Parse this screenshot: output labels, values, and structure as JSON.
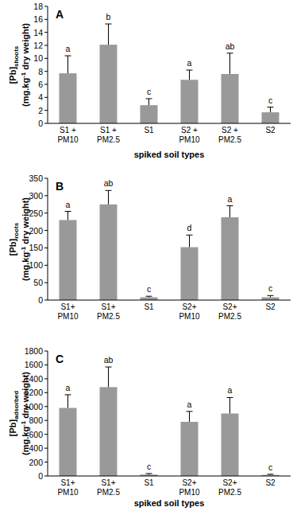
{
  "chart_data": [
    {
      "type": "bar",
      "annotation": "A",
      "y_label": [
        "[Pb]",
        "shoots"
      ],
      "y_unit": [
        "(mg.kg",
        "-1",
        " dry weight)"
      ],
      "x_label": "spiked soil types",
      "categories": [
        "S1 + PM10",
        "S1 + PM2.5",
        "S1",
        "S2 + PM10",
        "S2 + PM2.5",
        "S2"
      ],
      "values": [
        7.7,
        12.1,
        2.8,
        6.7,
        7.6,
        1.7
      ],
      "errors": [
        2.7,
        3.2,
        1.0,
        1.5,
        3.2,
        0.8
      ],
      "letters": [
        "a",
        "b",
        "c",
        "a",
        "ab",
        "c"
      ],
      "color": "#999999",
      "ylim": [
        0,
        18
      ],
      "yticks": [
        0,
        2,
        4,
        6,
        8,
        10,
        12,
        14,
        16,
        18
      ]
    },
    {
      "type": "bar",
      "annotation": "B",
      "y_label": [
        "[Pb]",
        "roots"
      ],
      "y_unit": [
        "(mg.kg",
        "-1",
        " dry weight)"
      ],
      "categories": [
        "S1+ PM10",
        "S1+ PM2.5",
        "S1",
        "S2+ PM10",
        "S2+ PM2.5",
        "S2"
      ],
      "values": [
        230,
        275,
        8,
        152,
        238,
        8
      ],
      "errors": [
        25,
        40,
        3,
        35,
        33,
        5
      ],
      "letters": [
        "a",
        "ab",
        "c",
        "d",
        "a",
        "c"
      ],
      "color": "#999999",
      "ylim": [
        0,
        350
      ],
      "yticks": [
        0,
        50,
        100,
        150,
        200,
        250,
        300,
        350
      ]
    },
    {
      "type": "bar",
      "annotation": "C",
      "y_label": [
        "[Pb]",
        "adsorbed"
      ],
      "y_unit": [
        "(mg.kg",
        "-1",
        " dry weight)"
      ],
      "x_label": "spiked soil types",
      "categories": [
        "S1+ PM10",
        "S1+ PM2.5",
        "S1",
        "S2+ PM10",
        "S2+ PM2.5",
        "S2"
      ],
      "values": [
        980,
        1280,
        20,
        780,
        900,
        15
      ],
      "errors": [
        190,
        290,
        15,
        150,
        230,
        10
      ],
      "letters": [
        "a",
        "ab",
        "c",
        "a",
        "a",
        "c"
      ],
      "color": "#999999",
      "ylim": [
        0,
        1800
      ],
      "yticks": [
        0,
        200,
        400,
        600,
        800,
        1000,
        1200,
        1400,
        1600,
        1800
      ]
    }
  ]
}
